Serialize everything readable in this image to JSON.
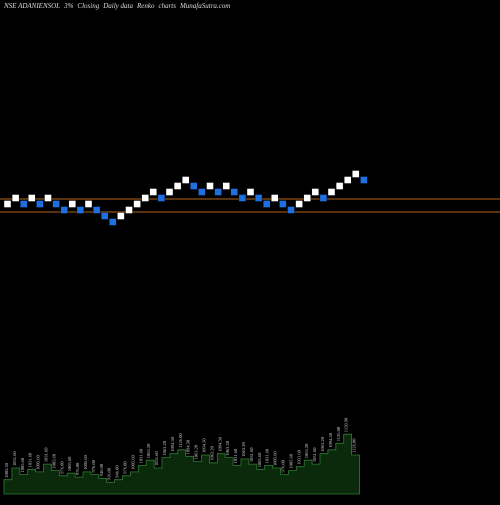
{
  "header": {
    "symbol": "NSE ADANIENSOL",
    "box": "3%",
    "basis": "Closing",
    "period": "Daily data",
    "kind": "Renko",
    "charts": "charts",
    "site": "MunafaSutra.com"
  },
  "colors": {
    "background": "#000000",
    "up_brick": "#ffffff",
    "down_brick": "#1e6fe0",
    "reference_line": "#b5651d",
    "volume_fill": "#0b2a0b",
    "volume_edge": "#2e7d32",
    "volume_label": "#cccccc"
  },
  "chart_data": {
    "type": "renko",
    "reference_lines": [
      1025,
      960
    ],
    "bricks": [
      {
        "dir": "up",
        "price": 1000
      },
      {
        "dir": "up",
        "price": 1030
      },
      {
        "dir": "down",
        "price": 1000
      },
      {
        "dir": "up",
        "price": 1030
      },
      {
        "dir": "down",
        "price": 1000
      },
      {
        "dir": "up",
        "price": 1030
      },
      {
        "dir": "down",
        "price": 1000
      },
      {
        "dir": "down",
        "price": 970
      },
      {
        "dir": "up",
        "price": 1000
      },
      {
        "dir": "down",
        "price": 970
      },
      {
        "dir": "up",
        "price": 1000
      },
      {
        "dir": "down",
        "price": 970
      },
      {
        "dir": "down",
        "price": 940
      },
      {
        "dir": "down",
        "price": 910
      },
      {
        "dir": "up",
        "price": 940
      },
      {
        "dir": "up",
        "price": 970
      },
      {
        "dir": "up",
        "price": 1000
      },
      {
        "dir": "up",
        "price": 1030
      },
      {
        "dir": "up",
        "price": 1060
      },
      {
        "dir": "down",
        "price": 1030
      },
      {
        "dir": "up",
        "price": 1060
      },
      {
        "dir": "up",
        "price": 1090
      },
      {
        "dir": "up",
        "price": 1120
      },
      {
        "dir": "down",
        "price": 1090
      },
      {
        "dir": "down",
        "price": 1060
      },
      {
        "dir": "up",
        "price": 1090
      },
      {
        "dir": "down",
        "price": 1060
      },
      {
        "dir": "up",
        "price": 1090
      },
      {
        "dir": "down",
        "price": 1060
      },
      {
        "dir": "down",
        "price": 1030
      },
      {
        "dir": "up",
        "price": 1060
      },
      {
        "dir": "down",
        "price": 1030
      },
      {
        "dir": "down",
        "price": 1000
      },
      {
        "dir": "up",
        "price": 1030
      },
      {
        "dir": "down",
        "price": 1000
      },
      {
        "dir": "down",
        "price": 970
      },
      {
        "dir": "up",
        "price": 1000
      },
      {
        "dir": "up",
        "price": 1030
      },
      {
        "dir": "up",
        "price": 1060
      },
      {
        "dir": "down",
        "price": 1030
      },
      {
        "dir": "up",
        "price": 1060
      },
      {
        "dir": "up",
        "price": 1090
      },
      {
        "dir": "up",
        "price": 1120
      },
      {
        "dir": "up",
        "price": 1150
      },
      {
        "dir": "down",
        "price": 1120
      }
    ],
    "volume_labels": [
      "1005.50",
      "1031.60",
      "1005.60",
      "1031.60",
      "1005.60",
      "1031.60",
      "1005.60",
      "976.00",
      "1005.60",
      "976.00",
      "1005.60",
      "976.00",
      "946.00",
      "916.00",
      "946.00",
      "976.00",
      "1005.60",
      "1031.60",
      "1063.20",
      "1031.60",
      "1063.20",
      "1094.50",
      "1126.00",
      "1094.50",
      "1063.20",
      "1094.50",
      "1063.20",
      "1094.50",
      "1063.20",
      "1031.60",
      "1063.20",
      "1031.60",
      "1005.60",
      "1031.60",
      "1005.60",
      "976.00",
      "1005.60",
      "1031.60",
      "1063.20",
      "1031.60",
      "1063.20",
      "1094.50",
      "1126.00",
      "1150.90",
      "1126.00"
    ],
    "volume": [
      22,
      40,
      30,
      38,
      34,
      46,
      36,
      28,
      32,
      26,
      34,
      30,
      24,
      18,
      22,
      28,
      34,
      44,
      52,
      40,
      56,
      62,
      68,
      58,
      50,
      60,
      48,
      62,
      56,
      44,
      54,
      46,
      38,
      44,
      40,
      30,
      36,
      42,
      52,
      46,
      62,
      68,
      78,
      92,
      60
    ]
  }
}
